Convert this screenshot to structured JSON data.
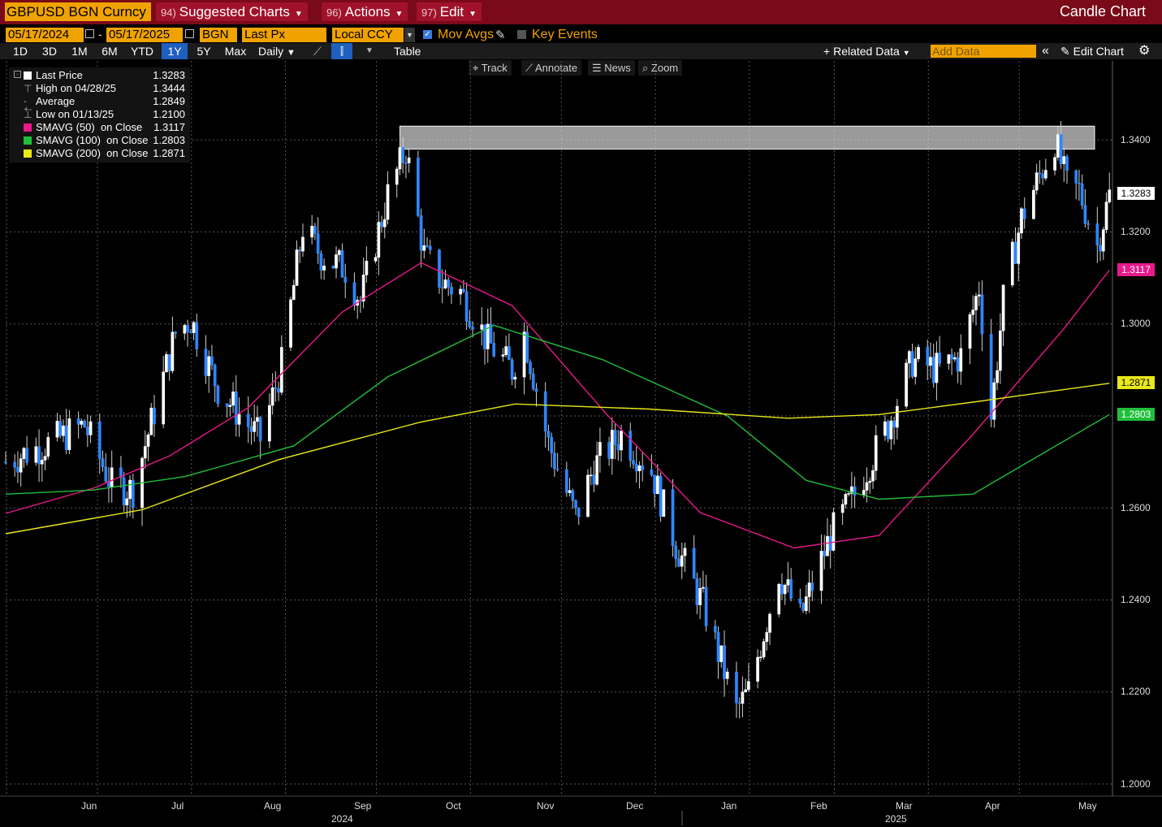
{
  "header": {
    "ticker": "GBPUSD BGN Curncy",
    "menus": [
      {
        "num": "94)",
        "label": "Suggested Charts"
      },
      {
        "num": "96)",
        "label": "Actions"
      },
      {
        "num": "97)",
        "label": "Edit"
      }
    ],
    "chart_type": "Candle Chart"
  },
  "controls": {
    "start_date": "05/17/2024",
    "end_date": "05/17/2025",
    "source": "BGN",
    "field": "Last Px",
    "currency": "Local CCY",
    "mov_avgs_label": "Mov Avgs",
    "mov_avgs_checked": true,
    "key_events_label": "Key Events",
    "key_events_checked": false,
    "ranges": [
      "1D",
      "3D",
      "1M",
      "6M",
      "YTD",
      "1Y",
      "5Y",
      "Max"
    ],
    "selected_range": "1Y",
    "frequency": "Daily",
    "table_label": "Table",
    "related_data_label": "Related Data",
    "add_data_placeholder": "Add Data",
    "edit_chart_label": "Edit Chart"
  },
  "tools": [
    "Track",
    "Annotate",
    "News",
    "Zoom"
  ],
  "legend": [
    {
      "label": "Last Price",
      "value": "1.3283",
      "color": "#ffffff",
      "kind": "square"
    },
    {
      "label": "High on 04/28/25",
      "value": "1.3444",
      "color": "#aaaaaa",
      "kind": "high"
    },
    {
      "label": "Average",
      "value": "1.2849",
      "color": "#aaaaaa",
      "kind": "avg"
    },
    {
      "label": "Low on 01/13/25",
      "value": "1.2100",
      "color": "#aaaaaa",
      "kind": "low"
    },
    {
      "label": "SMAVG (50)  on Close",
      "value": "1.3117",
      "color": "#e8198a",
      "kind": "square"
    },
    {
      "label": "SMAVG (100)  on Close",
      "value": "1.2803",
      "color": "#1fbf3a",
      "kind": "square"
    },
    {
      "label": "SMAVG (200)  on Close",
      "value": "1.2871",
      "color": "#e8e81a",
      "kind": "square"
    }
  ],
  "y_axis": {
    "ticks": [
      "1.3400",
      "1.3200",
      "1.3000",
      "1.2800",
      "1.2600",
      "1.2400",
      "1.2200",
      "1.2000"
    ]
  },
  "x_axis": {
    "months": [
      "Jun",
      "Jul",
      "Aug",
      "Sep",
      "Oct",
      "Nov",
      "Dec",
      "Jan",
      "Feb",
      "Mar",
      "Apr",
      "May"
    ],
    "years": [
      "2024",
      "2025"
    ]
  },
  "value_tags": [
    {
      "value": "1.3283",
      "bg": "#ffffff",
      "fg": "#000000"
    },
    {
      "value": "1.3117",
      "bg": "#e8198a",
      "fg": "#ffffff"
    },
    {
      "value": "1.2871",
      "bg": "#e8e81a",
      "fg": "#000000"
    },
    {
      "value": "1.2803",
      "bg": "#1fbf3a",
      "fg": "#ffffff"
    }
  ],
  "chart_data": {
    "type": "candlestick",
    "series_name": "GBPUSD BGN Curncy",
    "x_range": [
      "2024-05-17",
      "2025-05-17"
    ],
    "ylim": [
      1.2,
      1.35
    ],
    "grid": true,
    "highlight_zone": [
      1.338,
      1.343
    ],
    "close_path": [
      [
        "2024-05-17",
        1.27
      ],
      [
        "2024-05-31",
        1.274
      ],
      [
        "2024-06-12",
        1.278
      ],
      [
        "2024-06-21",
        1.265
      ],
      [
        "2024-06-28",
        1.264
      ],
      [
        "2024-07-05",
        1.281
      ],
      [
        "2024-07-12",
        1.298
      ],
      [
        "2024-07-17",
        1.301
      ],
      [
        "2024-07-26",
        1.286
      ],
      [
        "2024-08-05",
        1.278
      ],
      [
        "2024-08-09",
        1.275
      ],
      [
        "2024-08-16",
        1.291
      ],
      [
        "2024-08-23",
        1.321
      ],
      [
        "2024-08-29",
        1.315
      ],
      [
        "2024-09-06",
        1.312
      ],
      [
        "2024-09-11",
        1.305
      ],
      [
        "2024-09-20",
        1.328
      ],
      [
        "2024-09-26",
        1.338
      ],
      [
        "2024-10-02",
        1.315
      ],
      [
        "2024-10-08",
        1.309
      ],
      [
        "2024-10-14",
        1.307
      ],
      [
        "2024-10-23",
        1.296
      ],
      [
        "2024-10-31",
        1.29
      ],
      [
        "2024-11-04",
        1.298
      ],
      [
        "2024-11-12",
        1.274
      ],
      [
        "2024-11-21",
        1.258
      ],
      [
        "2024-11-27",
        1.269
      ],
      [
        "2024-12-06",
        1.276
      ],
      [
        "2024-12-16",
        1.268
      ],
      [
        "2024-12-24",
        1.252
      ],
      [
        "2025-01-02",
        1.239
      ],
      [
        "2025-01-13",
        1.216
      ],
      [
        "2025-01-17",
        1.22
      ],
      [
        "2025-01-27",
        1.246
      ],
      [
        "2025-02-03",
        1.236
      ],
      [
        "2025-02-13",
        1.254
      ],
      [
        "2025-02-21",
        1.263
      ],
      [
        "2025-03-04",
        1.278
      ],
      [
        "2025-03-12",
        1.292
      ],
      [
        "2025-03-21",
        1.29
      ],
      [
        "2025-03-28",
        1.293
      ],
      [
        "2025-04-03",
        1.308
      ],
      [
        "2025-04-07",
        1.28
      ],
      [
        "2025-04-11",
        1.305
      ],
      [
        "2025-04-17",
        1.323
      ],
      [
        "2025-04-28",
        1.34
      ],
      [
        "2025-05-02",
        1.33
      ],
      [
        "2025-05-06",
        1.329
      ],
      [
        "2025-05-12",
        1.317
      ],
      [
        "2025-05-16",
        1.328
      ]
    ],
    "moving_averages": [
      {
        "name": "SMAVG (50)",
        "color": "#e8198a",
        "points": [
          [
            "2024-05-17",
            1.2588
          ],
          [
            "2024-06-15",
            1.2643
          ],
          [
            "2024-07-10",
            1.2713
          ],
          [
            "2024-08-05",
            1.2818
          ],
          [
            "2024-09-05",
            1.3026
          ],
          [
            "2024-10-01",
            1.3133
          ],
          [
            "2024-10-31",
            1.304
          ],
          [
            "2024-12-01",
            1.2805
          ],
          [
            "2025-01-01",
            1.259
          ],
          [
            "2025-02-01",
            1.2513
          ],
          [
            "2025-03-01",
            1.254
          ],
          [
            "2025-04-01",
            1.276
          ],
          [
            "2025-05-01",
            1.299
          ],
          [
            "2025-05-16",
            1.3117
          ]
        ]
      },
      {
        "name": "SMAVG (100)",
        "color": "#1fbf3a",
        "points": [
          [
            "2024-05-17",
            1.263
          ],
          [
            "2024-06-15",
            1.2639
          ],
          [
            "2024-07-15",
            1.2668
          ],
          [
            "2024-08-20",
            1.2735
          ],
          [
            "2024-09-20",
            1.2885
          ],
          [
            "2024-10-25",
            1.2997
          ],
          [
            "2024-11-30",
            1.2922
          ],
          [
            "2025-01-10",
            1.28
          ],
          [
            "2025-02-05",
            1.266
          ],
          [
            "2025-03-01",
            1.2619
          ],
          [
            "2025-04-01",
            1.263
          ],
          [
            "2025-05-16",
            1.2803
          ]
        ]
      },
      {
        "name": "SMAVG (200)",
        "color": "#e8e81a",
        "points": [
          [
            "2024-05-17",
            1.2544
          ],
          [
            "2024-07-01",
            1.2596
          ],
          [
            "2024-08-15",
            1.2705
          ],
          [
            "2024-10-01",
            1.2787
          ],
          [
            "2024-11-01",
            1.2826
          ],
          [
            "2024-12-15",
            1.2815
          ],
          [
            "2025-01-30",
            1.2795
          ],
          [
            "2025-03-01",
            1.2803
          ],
          [
            "2025-04-01",
            1.283
          ],
          [
            "2025-05-16",
            1.2871
          ]
        ]
      }
    ],
    "last_price": 1.3283,
    "high": {
      "date": "2025-04-28",
      "value": 1.3444
    },
    "low": {
      "date": "2025-01-13",
      "value": 1.21
    },
    "average": 1.2849
  }
}
